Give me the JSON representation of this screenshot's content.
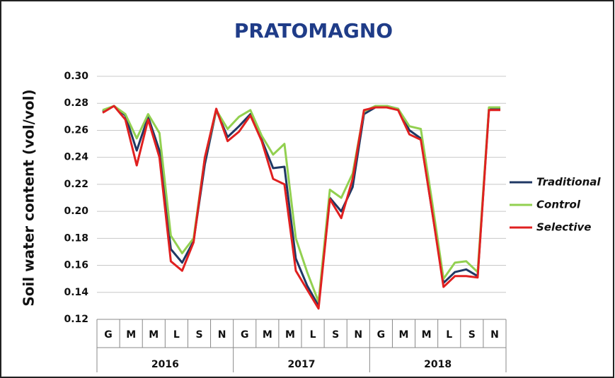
{
  "chart_data": {
    "type": "line",
    "title": "PRATOMAGNO",
    "y_label": "Soil water content (vol/vol)",
    "categories": [
      "G",
      null,
      "M",
      null,
      "M",
      null,
      "L",
      null,
      "S",
      null,
      "N",
      null,
      "G",
      null,
      "M",
      null,
      "M",
      null,
      "L",
      null,
      "S",
      null,
      "N",
      null,
      "G",
      null,
      "M",
      null,
      "M",
      null,
      "L",
      null,
      "S",
      null,
      "N",
      null
    ],
    "years": [
      "2016",
      "2017",
      "2018"
    ],
    "ylim": [
      0.12,
      0.3
    ],
    "yticks": [
      0.12,
      0.14,
      0.16,
      0.18,
      {
        "value": 0.2,
        "label": "0.20"
      },
      0.22,
      0.24,
      0.26,
      0.28,
      {
        "value": 0.3,
        "label": "0.30"
      }
    ],
    "grid": true,
    "legend": "right",
    "series": [
      {
        "name": "Traditional",
        "color": "#1f3864",
        "values": [
          0.274,
          0.278,
          0.271,
          0.245,
          0.27,
          0.245,
          0.172,
          0.162,
          0.178,
          0.235,
          0.275,
          0.255,
          0.263,
          0.272,
          0.253,
          0.232,
          0.233,
          0.165,
          0.145,
          0.13,
          0.21,
          0.2,
          0.218,
          0.272,
          0.277,
          0.278,
          0.276,
          0.26,
          0.254,
          0.2,
          0.147,
          0.155,
          0.157,
          0.152,
          0.276,
          0.276
        ]
      },
      {
        "name": "Control",
        "color": "#92d050",
        "values": [
          0.275,
          0.278,
          0.272,
          0.254,
          0.272,
          0.258,
          0.182,
          0.169,
          0.18,
          0.24,
          0.275,
          0.261,
          0.27,
          0.275,
          0.256,
          0.242,
          0.25,
          0.18,
          0.155,
          0.133,
          0.216,
          0.21,
          0.228,
          0.274,
          0.278,
          0.278,
          0.276,
          0.263,
          0.261,
          0.207,
          0.15,
          0.162,
          0.163,
          0.155,
          0.277,
          0.277
        ]
      },
      {
        "name": "Selective",
        "color": "#e02020",
        "values": [
          0.273,
          0.278,
          0.268,
          0.234,
          0.268,
          0.24,
          0.163,
          0.156,
          0.177,
          0.24,
          0.276,
          0.252,
          0.259,
          0.271,
          0.252,
          0.224,
          0.22,
          0.156,
          0.142,
          0.128,
          0.209,
          0.195,
          0.224,
          0.275,
          0.277,
          0.277,
          0.275,
          0.257,
          0.253,
          0.2,
          0.144,
          0.152,
          0.152,
          0.151,
          0.275,
          0.275
        ]
      }
    ]
  }
}
